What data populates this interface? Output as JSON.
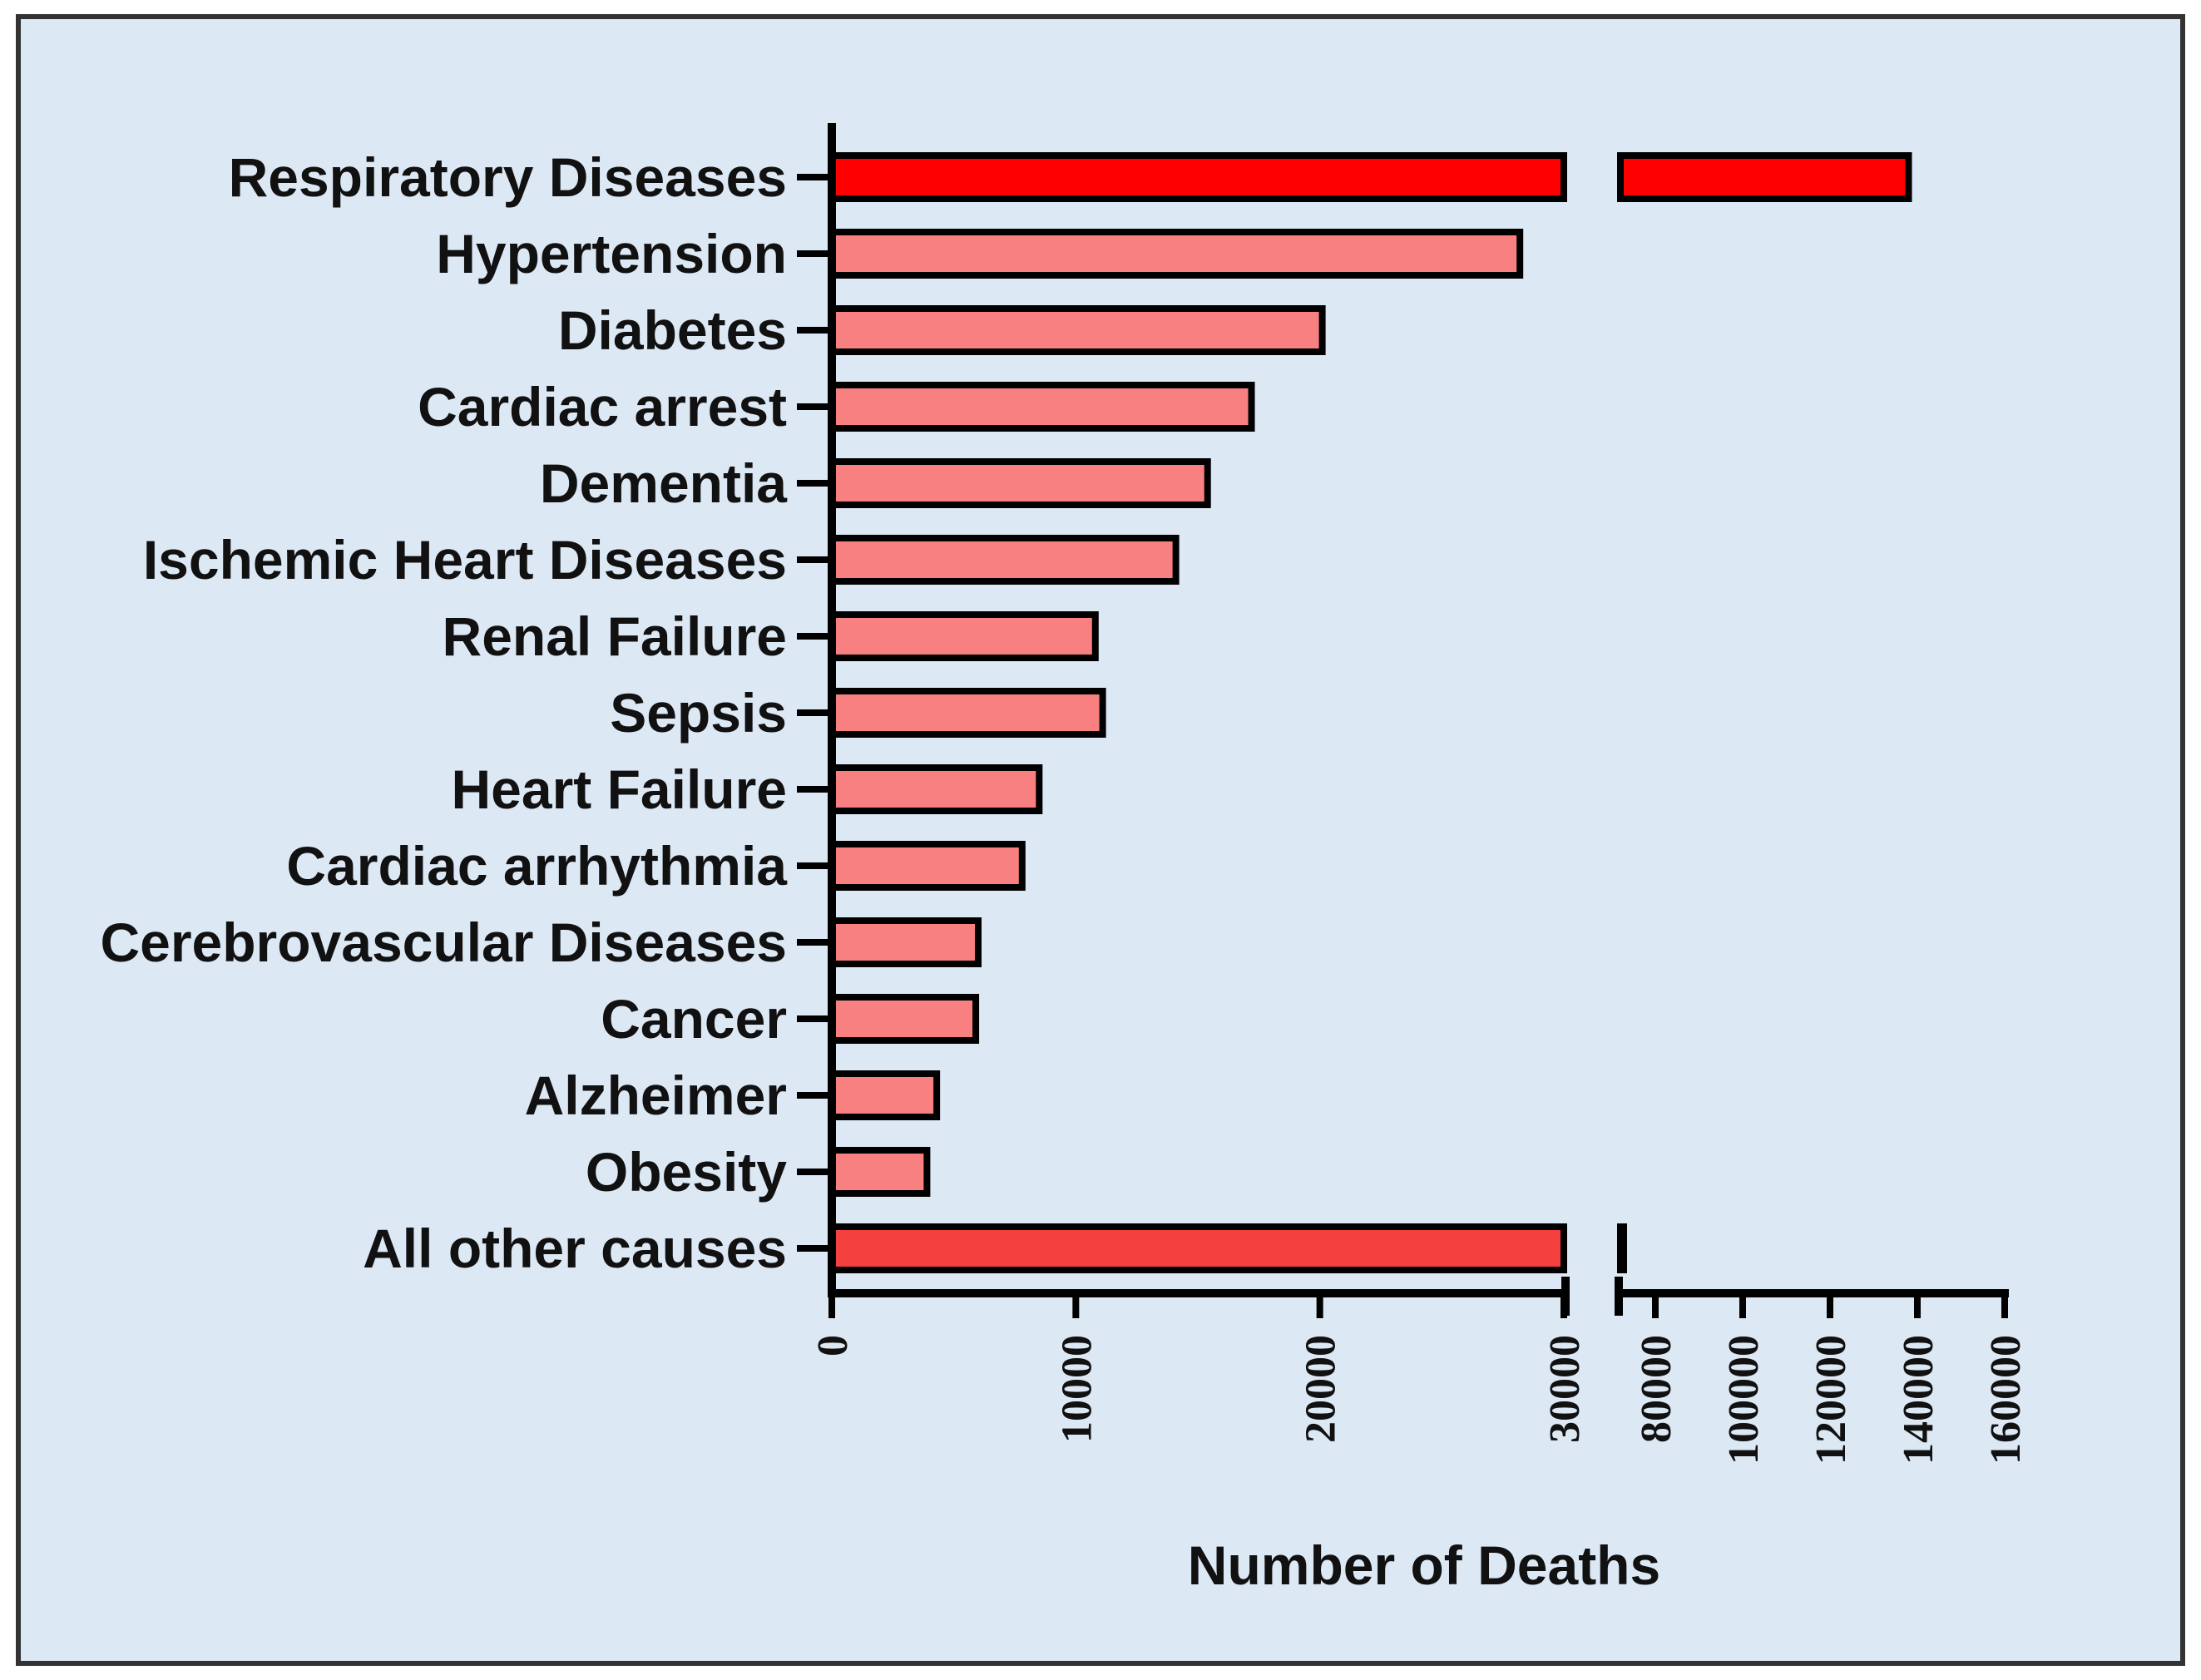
{
  "chart_data": {
    "type": "bar",
    "orientation": "horizontal",
    "title": "",
    "xlabel": "Number of Deaths",
    "ylabel": "",
    "categories": [
      "Respiratory Diseases",
      "Hypertension",
      "Diabetes",
      "Cardiac arrest",
      "Dementia",
      "Ischemic Heart Diseases",
      "Renal Failure",
      "Sepsis",
      "Heart Failure",
      "Cardiac arrhythmia",
      "Cerebrovascular Diseases",
      "Cancer",
      "Alzheimer",
      "Obesity",
      "All other causes"
    ],
    "values": [
      138000,
      28200,
      20100,
      17200,
      15400,
      14100,
      10800,
      11100,
      8500,
      7800,
      6000,
      5900,
      4300,
      3900,
      72000
    ],
    "x_axis_break": {
      "segment1": {
        "xlim": [
          0,
          30000
        ],
        "ticks": [
          "0",
          "10000",
          "20000",
          "30000"
        ]
      },
      "segment2": {
        "xlim": [
          72000,
          160000
        ],
        "ticks": [
          "80000",
          "100000",
          "120000",
          "140000",
          "160000"
        ]
      }
    },
    "bar_colors": {
      "Respiratory Diseases": "#ff0000",
      "All other causes": "#f54040",
      "default": "#f88080"
    },
    "bar_edge_color": "#000000",
    "panel_background": "#dde8f5",
    "panel_border": "#333333",
    "grid": false,
    "legend": "none"
  }
}
